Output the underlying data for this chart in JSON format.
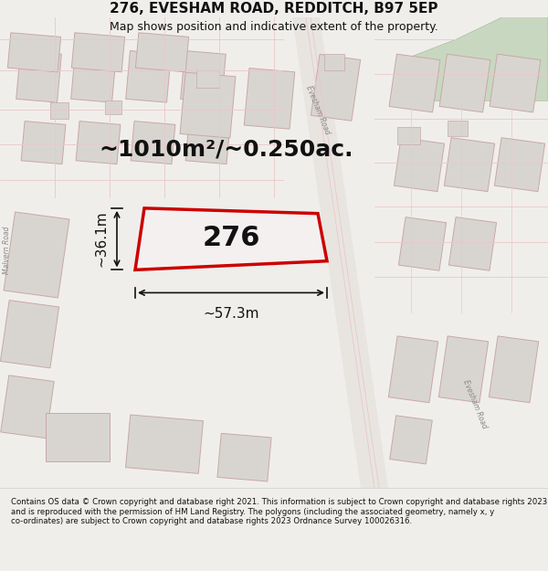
{
  "title_line1": "276, EVESHAM ROAD, REDDITCH, B97 5EP",
  "title_line2": "Map shows position and indicative extent of the property.",
  "area_label": "~1010m²/~0.250ac.",
  "property_number": "276",
  "width_label": "~57.3m",
  "height_label": "~36.1m",
  "footer_text": "Contains OS data © Crown copyright and database right 2021. This information is subject to Crown copyright and database rights 2023 and is reproduced with the permission of HM Land Registry. The polygons (including the associated geometry, namely x, y co-ordinates) are subject to Crown copyright and database rights 2023 Ordnance Survey 100026316.",
  "bg_color": "#f0eeeb",
  "map_bg": "#f5f3f0",
  "building_fill": "#d8d5d0",
  "building_edge": "#c8a8a8",
  "road_color": "#e8c8c8",
  "green_area": "#c8d8c0",
  "property_fill": "#f5f0f0",
  "property_edge": "#cc0000",
  "dim_color": "#111111",
  "title_color": "#111111",
  "footer_color": "#111111",
  "road_label_color": "#888888",
  "footer_bg": "#ffffff"
}
